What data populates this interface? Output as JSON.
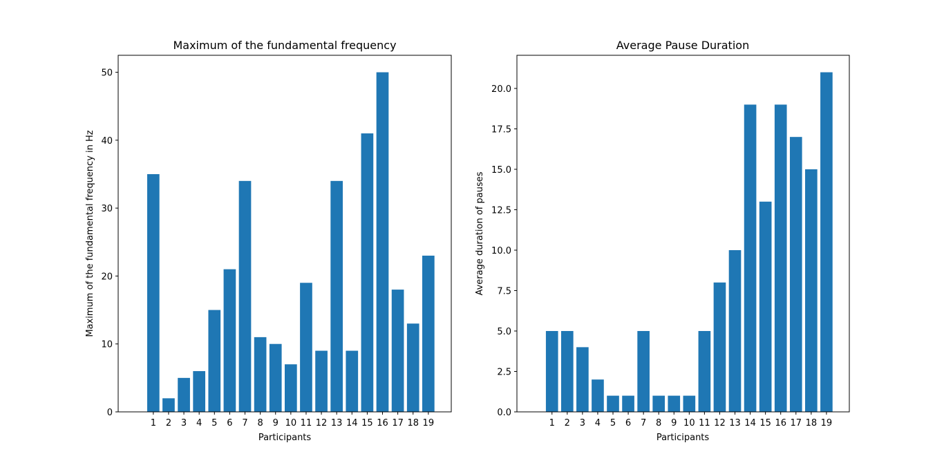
{
  "chart_data": [
    {
      "type": "bar",
      "title": "Maximum of the fundamental frequency",
      "xlabel": "Participants",
      "ylabel": "Maximum of the fundamental frequency in Hz",
      "categories": [
        "1",
        "2",
        "3",
        "4",
        "5",
        "6",
        "7",
        "8",
        "9",
        "10",
        "11",
        "12",
        "13",
        "14",
        "15",
        "16",
        "17",
        "18",
        "19"
      ],
      "values": [
        35,
        2,
        5,
        6,
        15,
        21,
        34,
        11,
        10,
        7,
        19,
        9,
        34,
        9,
        41,
        50,
        18,
        13,
        23
      ],
      "xlim": [
        -1.3,
        20.5
      ],
      "ylim": [
        0,
        52.5
      ],
      "yticks": [
        0,
        10,
        20,
        30,
        40,
        50
      ],
      "ytick_labels": [
        "0",
        "10",
        "20",
        "30",
        "40",
        "50"
      ],
      "bar_color": "#1f77b4",
      "grid": false
    },
    {
      "type": "bar",
      "title": "Average Pause Duration",
      "xlabel": "Participants",
      "ylabel": "Average duration of pauses",
      "categories": [
        "1",
        "2",
        "3",
        "4",
        "5",
        "6",
        "7",
        "8",
        "9",
        "10",
        "11",
        "12",
        "13",
        "14",
        "15",
        "16",
        "17",
        "18",
        "19"
      ],
      "values": [
        5,
        5,
        4,
        2,
        1,
        1,
        5,
        1,
        1,
        1,
        5,
        8,
        10,
        19,
        13,
        19,
        17,
        15,
        21
      ],
      "xlim": [
        -1.3,
        20.5
      ],
      "ylim": [
        0,
        22.05
      ],
      "yticks": [
        0,
        2.5,
        5,
        7.5,
        10,
        12.5,
        15,
        17.5,
        20
      ],
      "ytick_labels": [
        "0.0",
        "2.5",
        "5.0",
        "7.5",
        "10.0",
        "12.5",
        "15.0",
        "17.5",
        "20.0"
      ],
      "bar_color": "#1f77b4",
      "grid": false
    }
  ]
}
